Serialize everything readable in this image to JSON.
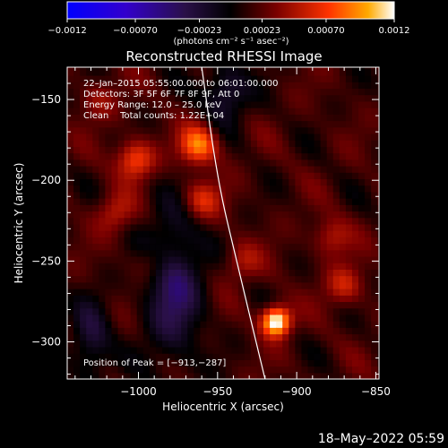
{
  "chart_data": {
    "type": "heatmap",
    "title": "Reconstructed RHESSI Image",
    "xlabel": "Heliocentric X (arcsec)",
    "ylabel": "Heliocentric Y (arcsec)",
    "xlim": [
      -1045,
      -848
    ],
    "ylim": [
      -323,
      -130
    ],
    "xticks": [
      -1000,
      -950,
      -900,
      -850
    ],
    "xtick_labels": [
      "−1000",
      "−950",
      "−900",
      "−850"
    ],
    "yticks": [
      -150,
      -200,
      -250,
      -300
    ],
    "ytick_labels": [
      "−150",
      "−200",
      "−250",
      "−300"
    ],
    "colorbar": {
      "min": -0.0012,
      "max": 0.0012,
      "ticks": [
        -0.0012,
        -0.0007,
        -0.00023,
        0.00023,
        0.0007,
        0.0012
      ],
      "tick_labels": [
        "−0.0012",
        "−0.00070",
        "−0.00023",
        "0.00023",
        "0.00070",
        "0.0012"
      ],
      "units_label": "(photons cm⁻² s⁻¹ asec⁻²)"
    },
    "annotations": [
      "22–Jan–2015 05:55:00.000 to 06:01:00.000",
      "Detectors: 3F 5F 6F 7F 8F 9F, Att 0",
      "Energy Range: 12.0 – 25.0 keV",
      "Clean    Total counts: 1.22E+04"
    ],
    "peak_label": "Position of Peak = [−913,−287]",
    "peak": {
      "x": -913,
      "y": -287
    },
    "sources": [
      {
        "x": -913,
        "y": -287,
        "intensity": 0.0012
      },
      {
        "x": -962,
        "y": -178,
        "intensity": 0.00075
      },
      {
        "x": -1002,
        "y": -187,
        "intensity": 0.0006
      },
      {
        "x": -960,
        "y": -212,
        "intensity": 0.00045
      },
      {
        "x": -1015,
        "y": -220,
        "intensity": 0.00035
      },
      {
        "x": -870,
        "y": -265,
        "intensity": 0.0004
      },
      {
        "x": -878,
        "y": -235,
        "intensity": 0.00035
      },
      {
        "x": -990,
        "y": -250,
        "intensity": 0.00025
      },
      {
        "x": -1025,
        "y": -150,
        "intensity": 0.00025
      },
      {
        "x": -935,
        "y": -250,
        "intensity": 0.0003
      }
    ],
    "limb_curve": [
      [
        -960,
        -130
      ],
      [
        -950,
        -200
      ],
      [
        -938,
        -250
      ],
      [
        -920,
        -323
      ]
    ]
  },
  "footer_date": "18–May–2022 05:59"
}
